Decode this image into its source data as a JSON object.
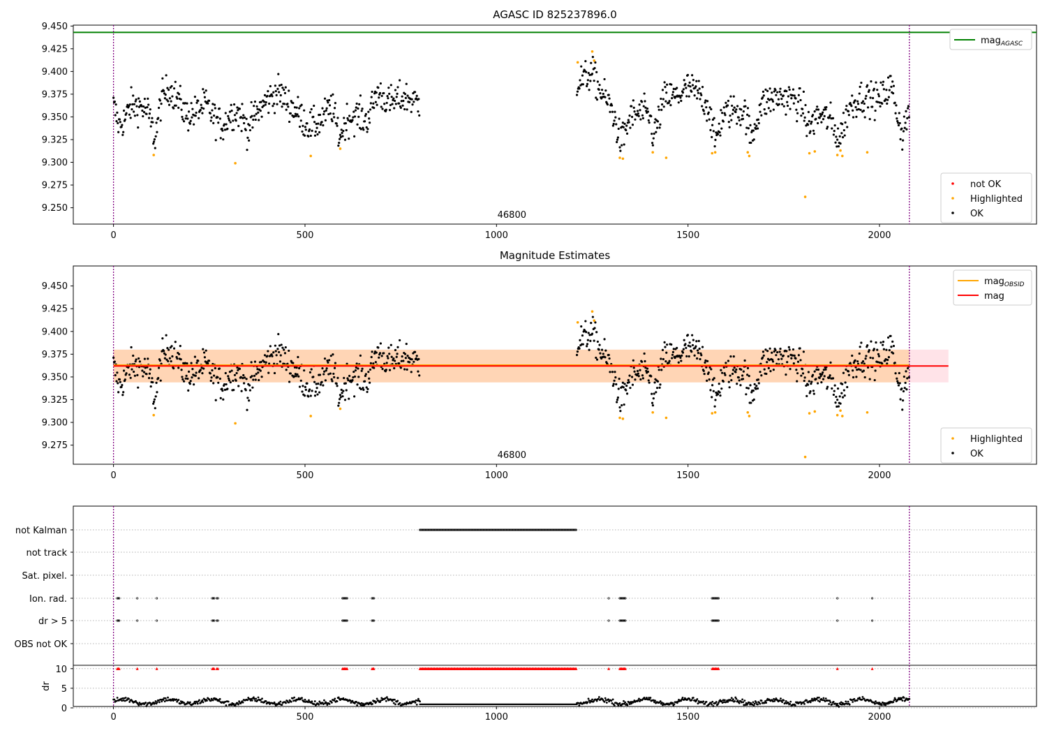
{
  "figure": {
    "panel1_title": "AGASC ID 825237896.0",
    "panel2_title": "Magnitude Estimates"
  },
  "chart_data": [
    {
      "type": "scatter",
      "title": "AGASC ID 825237896.0",
      "xlim": [
        -105,
        2410
      ],
      "ylim": [
        9.232,
        9.451
      ],
      "x_ticks": [
        0,
        500,
        1000,
        1500,
        2000
      ],
      "y_ticks": [
        9.25,
        9.275,
        9.3,
        9.325,
        9.35,
        9.375,
        9.4,
        9.425,
        9.45
      ],
      "obsid_annotation": {
        "x": 1000,
        "label": "46800"
      },
      "obsid_boundaries": [
        0,
        2078
      ],
      "mag_agasc": 9.443,
      "legend_upper": [
        {
          "label": "mag",
          "subscript": "AGASC",
          "color": "#008000"
        }
      ],
      "legend_lower": [
        {
          "label": "not OK",
          "color": "#ff0000"
        },
        {
          "label": "Highlighted",
          "color": "#ffa500"
        },
        {
          "label": "OK",
          "color": "#000000"
        }
      ],
      "series": [
        {
          "name": "OK",
          "color": "#000000",
          "x_ranges": [
            [
              0,
              800
            ],
            [
              1210,
              2078
            ]
          ]
        },
        {
          "name": "Highlighted",
          "color": "#ffa500",
          "points": [
            [
              105,
              9.308
            ],
            [
              318,
              9.299
            ],
            [
              515,
              9.307
            ],
            [
              592,
              9.315
            ],
            [
              1212,
              9.41
            ],
            [
              1250,
              9.422
            ],
            [
              1255,
              9.412
            ],
            [
              1322,
              9.305
            ],
            [
              1330,
              9.304
            ],
            [
              1408,
              9.311
            ],
            [
              1443,
              9.305
            ],
            [
              1563,
              9.31
            ],
            [
              1571,
              9.311
            ],
            [
              1656,
              9.311
            ],
            [
              1660,
              9.307
            ],
            [
              1806,
              9.262
            ],
            [
              1817,
              9.31
            ],
            [
              1831,
              9.312
            ],
            [
              1890,
              9.308
            ],
            [
              1898,
              9.313
            ],
            [
              1903,
              9.307
            ],
            [
              1968,
              9.311
            ]
          ]
        }
      ]
    },
    {
      "type": "scatter",
      "title": "Magnitude Estimates",
      "xlim": [
        -105,
        2410
      ],
      "ylim": [
        9.254,
        9.472
      ],
      "x_ticks": [
        0,
        500,
        1000,
        1500,
        2000
      ],
      "y_ticks": [
        9.275,
        9.3,
        9.325,
        9.35,
        9.375,
        9.4,
        9.425,
        9.45
      ],
      "obsid_annotation": {
        "x": 1000,
        "label": "46800"
      },
      "mag": 9.362,
      "mag_band": [
        9.344,
        9.38
      ],
      "mag_obsid": 9.363,
      "obsid_band": [
        9.344,
        9.38
      ],
      "legend_upper": [
        {
          "label": "mag",
          "subscript": "OBSID",
          "color": "#ffa500"
        },
        {
          "label": "mag",
          "color": "#ff0000"
        }
      ],
      "legend_lower": [
        {
          "label": "Highlighted",
          "color": "#ffa500"
        },
        {
          "label": "OK",
          "color": "#000000"
        }
      ]
    },
    {
      "type": "scatter",
      "flags": [
        "not Kalman",
        "not track",
        "Sat. pixel.",
        "Ion. rad.",
        "dr > 5",
        "OBS not OK"
      ],
      "flag_ranges": {
        "not Kalman": [
          [
            800,
            1210
          ]
        ],
        "Ion. rad.": [
          [
            10,
            16
          ],
          [
            62,
            64
          ],
          [
            113,
            115
          ],
          [
            258,
            264
          ],
          [
            270,
            273
          ],
          [
            598,
            610
          ],
          [
            675,
            682
          ],
          [
            1293,
            1295
          ],
          [
            1322,
            1338
          ],
          [
            1563,
            1582
          ],
          [
            1890,
            1892
          ],
          [
            1981,
            1983
          ]
        ],
        "dr > 5": [
          [
            10,
            16
          ],
          [
            62,
            64
          ],
          [
            113,
            115
          ],
          [
            258,
            264
          ],
          [
            270,
            273
          ],
          [
            598,
            610
          ],
          [
            675,
            682
          ],
          [
            1293,
            1295
          ],
          [
            1322,
            1338
          ],
          [
            1563,
            1582
          ],
          [
            1890,
            1892
          ],
          [
            1981,
            1983
          ]
        ]
      },
      "dr_ylabel": "dr",
      "dr_ylim": [
        0,
        10.5
      ],
      "dr_yticks": [
        0,
        5,
        10
      ],
      "dr_red_at": 10,
      "dr_black_range": [
        0.5,
        3
      ]
    }
  ]
}
